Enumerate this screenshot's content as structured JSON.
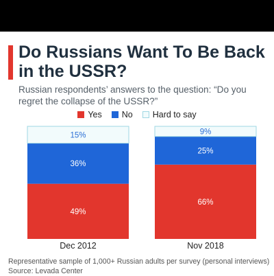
{
  "title": "Do Russians Want To Be Back in the USSR?",
  "subtitle": "Russian respondents’ answers to the question: “Do you regret the collapse of the USSR?”",
  "footnote": "Representative sample of 1,000+ Russian adults per survey (personal interviews)",
  "source": "Source: Levada Center",
  "colors": {
    "yes": "#e2362d",
    "no": "#1f66d8",
    "hard_to_say": "#f2fbfc",
    "hard_to_say_border": "#9fd7e3",
    "accent": "#e2362d"
  },
  "chart_data": {
    "type": "bar",
    "stacked": true,
    "categories": [
      "Dec 2012",
      "Nov 2018"
    ],
    "series": [
      {
        "name": "Yes",
        "values": [
          49,
          66
        ],
        "labels": [
          "49%",
          "66%"
        ]
      },
      {
        "name": "No",
        "values": [
          36,
          25
        ],
        "labels": [
          "36%",
          "25%"
        ]
      },
      {
        "name": "Hard to say",
        "values": [
          15,
          9
        ],
        "labels": [
          "15%",
          "9%"
        ]
      }
    ],
    "ylim": [
      0,
      100
    ],
    "legend_position": "top-center",
    "grid": false
  }
}
